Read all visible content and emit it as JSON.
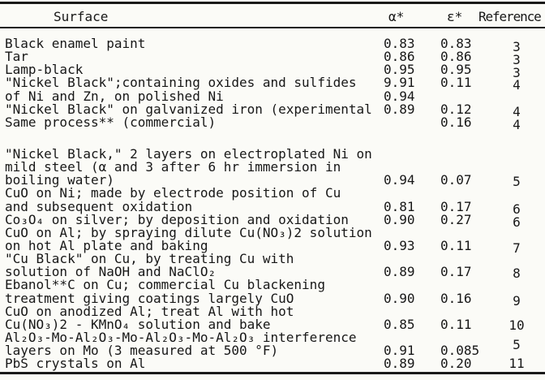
{
  "colors": {
    "paper": "#fbfbf7",
    "ink": "#171717",
    "rule": "#1a1a1a"
  },
  "table": {
    "header": {
      "surface": "Surface",
      "alpha": "α*",
      "epsilon": "ε*",
      "reference": "Reference"
    },
    "rows": [
      {
        "surface": "Black enamel paint",
        "alpha": "0.83",
        "epsilon": "0.83",
        "ref": "3",
        "refShift": 4
      },
      {
        "surface": "Tar",
        "alpha": "0.86",
        "epsilon": "0.86",
        "ref": "3",
        "refShift": 4
      },
      {
        "surface": "Lamp-black",
        "alpha": "0.95",
        "epsilon": "0.95",
        "ref": "3",
        "refShift": 4
      },
      {
        "surface": "\"Nickel Black\";containing oxides and sulfides",
        "alpha": "9.91",
        "epsilon": "0.11",
        "ref": "4",
        "refShift": 3
      },
      {
        "surface": "of Ni and Zn, on polished Ni",
        "alpha": "0.94",
        "epsilon": "",
        "ref": ""
      },
      {
        "surface": "\"Nickel Black\" on galvanized iron (experimental",
        "alpha": "0.89",
        "epsilon": "0.12",
        "ref": "4",
        "refShift": 3
      },
      {
        "surface": "Same process** (commercial)",
        "alpha": "",
        "epsilon": "0.16",
        "ref": "4",
        "refShift": 3
      },
      {
        "gap": true
      },
      {
        "surface": "\"Nickel Black,\" 2 layers on electroplated Ni on",
        "alpha": "",
        "epsilon": "",
        "ref": ""
      },
      {
        "surface": "mild steel (α and 3 after 6 hr immersion in",
        "alpha": "",
        "epsilon": "",
        "ref": ""
      },
      {
        "surface": "boiling water)",
        "alpha": "0.94",
        "epsilon": "0.07",
        "ref": "5",
        "refShift": 2
      },
      {
        "surface": "CuO on Ni; made by electrode position of Cu",
        "alpha": "",
        "epsilon": "",
        "ref": ""
      },
      {
        "surface": "and subsequent oxidation",
        "alpha": "0.81",
        "epsilon": "0.17",
        "ref": "6",
        "refShift": 3
      },
      {
        "surface": "Co₃O₄ on silver; by deposition and oxidation",
        "alpha": "0.90",
        "epsilon": "0.27",
        "ref": "6",
        "refShift": 3
      },
      {
        "surface": "CuO on Al; by spraying dilute Cu(NO₃)2 solution",
        "alpha": "",
        "epsilon": "",
        "ref": ""
      },
      {
        "surface": "on hot Al plate and baking",
        "alpha": "0.93",
        "epsilon": "0.11",
        "ref": "7",
        "refShift": 3
      },
      {
        "surface": "\"Cu Black\" on Cu, by treating Cu with",
        "alpha": "",
        "epsilon": "",
        "ref": ""
      },
      {
        "surface": "solution of NaOH and NaClO₂",
        "alpha": "0.89",
        "epsilon": "0.17",
        "ref": "8",
        "refShift": 2
      },
      {
        "surface": "Ebanol**C on Cu; commercial Cu blackening",
        "alpha": "",
        "epsilon": "",
        "ref": ""
      },
      {
        "surface": "treatment giving coatings largely CuO",
        "alpha": "0.90",
        "epsilon": "0.16",
        "ref": "9",
        "refShift": 3
      },
      {
        "surface": "CuO on anodized Al; treat Al with hot",
        "alpha": "",
        "epsilon": "",
        "ref": ""
      },
      {
        "surface": "Cu(NO₃)2 - KMnO₄ solution and bake",
        "alpha": "0.85",
        "epsilon": "0.11",
        "ref": "10",
        "refShift": 1
      },
      {
        "surface": "Al₂O₃-Mo-Al₂O₃-Mo-Al₂O₃-Mo-Al₂O₃ interference",
        "alpha": "",
        "epsilon": "",
        "ref": ""
      },
      {
        "surface": "layers on Mo (3 measured at 500 °F)",
        "alpha": "0.91",
        "epsilon": "0.085",
        "ref": "5",
        "refShift": -7
      },
      {
        "surface": "PbS crystals on Al",
        "alpha": "0.89",
        "epsilon": "0.20",
        "ref": "11",
        "refShift": 0
      }
    ]
  }
}
